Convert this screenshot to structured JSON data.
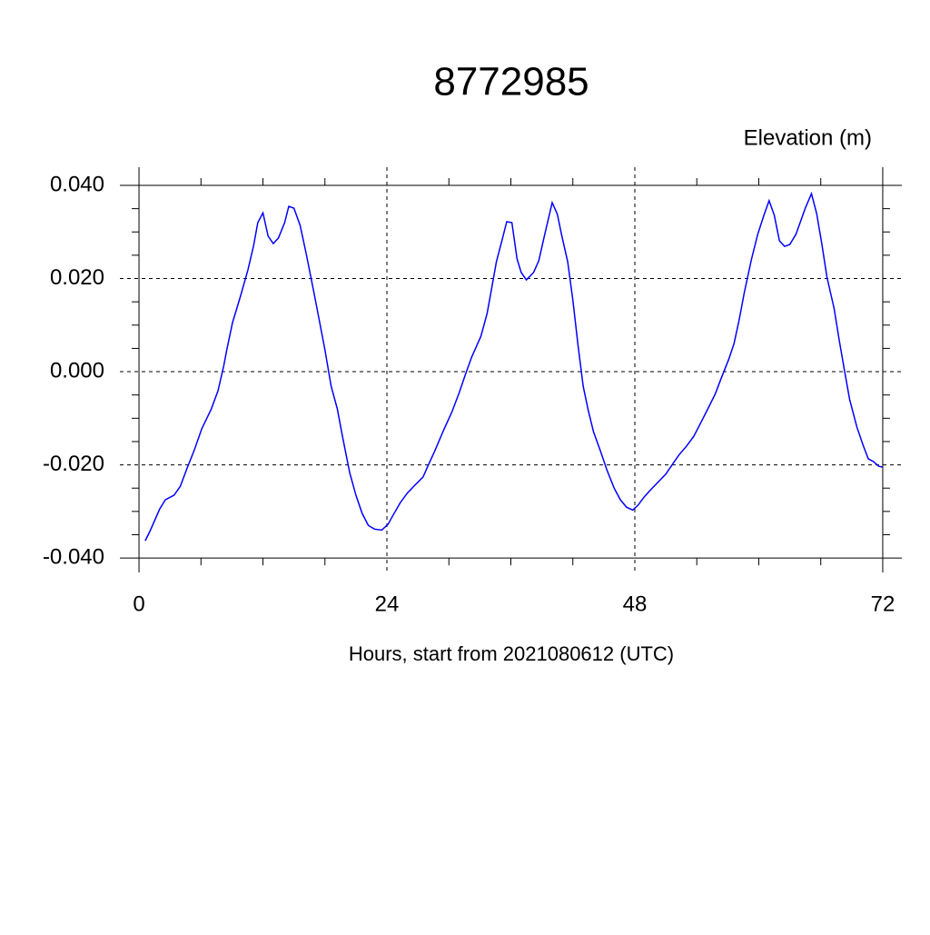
{
  "chart_data": {
    "type": "line",
    "title": "8772985",
    "subtitle": "Elevation (m)",
    "x_label": "Hours, start from 2021080612 (UTC)",
    "xlim": [
      -1.85,
      73.85
    ],
    "ylim": [
      -0.0431,
      0.0439
    ],
    "xticks": [
      0,
      24,
      48,
      72
    ],
    "yticks": [
      {
        "value": -0.04,
        "label": "-0.040"
      },
      {
        "value": -0.02,
        "label": "-0.020"
      },
      {
        "value": 0,
        "label": "0.000"
      },
      {
        "value": 0.02,
        "label": "0.020"
      },
      {
        "value": 0.04,
        "label": "0.040"
      }
    ],
    "x_minor_ticks": [
      6,
      12,
      18,
      30,
      36,
      42,
      54,
      60,
      66
    ],
    "y_minor_ticks": [
      -0.035,
      -0.03,
      -0.025,
      -0.015,
      -0.01,
      -0.005,
      0.005,
      0.01,
      0.015,
      0.025,
      0.03,
      0.035
    ],
    "grid": true,
    "x": [
      0.6,
      1.05,
      2.0,
      2.55,
      3.4,
      4.0,
      4.66,
      5.36,
      6.07,
      7.0,
      7.65,
      8.2,
      8.5,
      9.05,
      9.85,
      10.55,
      11.1,
      11.5,
      12.0,
      12.5,
      13.0,
      13.5,
      14.1,
      14.5,
      15.0,
      15.6,
      16.2,
      16.9,
      17.5,
      18.0,
      18.6,
      19.2,
      19.7,
      20.4,
      21.0,
      21.6,
      22.2,
      22.8,
      23.5,
      24.1,
      24.6,
      25.3,
      26.0,
      26.7,
      27.5,
      28.0,
      28.6,
      29.5,
      30.3,
      31.0,
      31.6,
      32.2,
      33.1,
      33.7,
      34.1,
      34.6,
      35.2,
      35.6,
      36.1,
      36.6,
      37.0,
      37.5,
      38.2,
      38.7,
      39.2,
      40.0,
      40.5,
      40.9,
      41.5,
      42.0,
      42.5,
      43.0,
      43.5,
      44.0,
      44.7,
      45.3,
      46.0,
      46.6,
      47.2,
      47.8,
      48.3,
      48.9,
      49.6,
      50.3,
      51.0,
      51.7,
      52.3,
      53.0,
      53.7,
      54.4,
      55.2,
      55.8,
      56.4,
      57.1,
      57.6,
      58.1,
      58.6,
      59.3,
      59.9,
      60.5,
      61.0,
      61.5,
      62.0,
      62.5,
      63.0,
      63.6,
      64.1,
      64.5,
      65.1,
      65.6,
      66.1,
      66.6,
      67.3,
      67.8,
      68.3,
      68.8,
      69.5,
      70.1,
      70.6,
      71.1,
      71.6,
      72.0
    ],
    "series": [
      {
        "name": "Elevation",
        "color": "#0000ff",
        "values": [
          -0.0363,
          -0.0343,
          -0.0295,
          -0.0275,
          -0.0265,
          -0.0246,
          -0.0207,
          -0.0168,
          -0.0123,
          -0.008,
          -0.0041,
          0.0012,
          0.0047,
          0.0105,
          0.0164,
          0.0219,
          0.0271,
          0.032,
          0.0341,
          0.0291,
          0.0275,
          0.0287,
          0.032,
          0.0355,
          0.0351,
          0.0314,
          0.0252,
          0.0174,
          0.0105,
          0.0047,
          -0.0031,
          -0.008,
          -0.0139,
          -0.0217,
          -0.0265,
          -0.0304,
          -0.033,
          -0.0338,
          -0.034,
          -0.0328,
          -0.0308,
          -0.0281,
          -0.026,
          -0.0244,
          -0.0226,
          -0.0201,
          -0.0172,
          -0.0125,
          -0.0086,
          -0.0045,
          -0.0006,
          0.0031,
          0.0076,
          0.0125,
          0.0174,
          0.0236,
          0.0287,
          0.0322,
          0.032,
          0.0242,
          0.0213,
          0.0197,
          0.0213,
          0.0238,
          0.0287,
          0.0363,
          0.0338,
          0.0295,
          0.0236,
          0.0154,
          0.0057,
          -0.0031,
          -0.0084,
          -0.0129,
          -0.0172,
          -0.0211,
          -0.025,
          -0.0275,
          -0.0291,
          -0.0297,
          -0.0287,
          -0.0269,
          -0.0252,
          -0.0236,
          -0.022,
          -0.0197,
          -0.0178,
          -0.016,
          -0.0139,
          -0.0109,
          -0.0074,
          -0.0047,
          -0.0012,
          0.0027,
          0.006,
          0.0111,
          0.017,
          0.0242,
          0.0295,
          0.0336,
          0.0367,
          0.0336,
          0.0281,
          0.0269,
          0.0273,
          0.0295,
          0.0326,
          0.0351,
          0.0382,
          0.034,
          0.0275,
          0.0203,
          0.0135,
          0.0066,
          0.0002,
          -0.006,
          -0.0119,
          -0.0158,
          -0.0187,
          -0.0193,
          -0.0203,
          -0.0205
        ]
      }
    ]
  }
}
